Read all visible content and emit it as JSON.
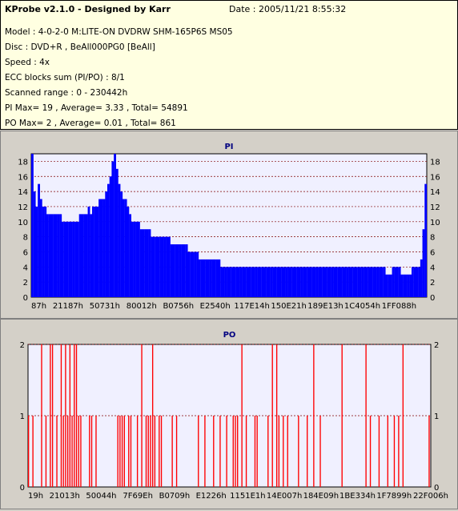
{
  "info": {
    "title": "KProbe v2.1.0 - Designed by Karr",
    "date": "Date : 2005/11/21 8:55:32",
    "lines": [
      "Model : 4-0-2-0 M:LITE-ON DVDRW SHM-165P6S MS05",
      "Disc : DVD+R , BeAll000PG0 [BeAll]",
      "Speed : 4x",
      "ECC blocks sum (PI/PO) : 8/1",
      "Scanned range : 0 - 230442h",
      "PI Max= 19 , Average= 3.33 , Total= 54891",
      "PO Max= 2 , Average= 0.01 , Total= 861"
    ]
  },
  "colors": {
    "pi": "#0000ff",
    "po": "#ff0000",
    "plot_bg": "#f0f0ff",
    "panel_bg": "#d4d0c8"
  },
  "chart_data": [
    {
      "type": "bar",
      "title": "PI",
      "ylim": [
        0,
        19
      ],
      "y_ticks": [
        0,
        2,
        4,
        6,
        8,
        10,
        12,
        14,
        16,
        18
      ],
      "x_tick_labels": [
        "87h",
        "21187h",
        "50731h",
        "80012h",
        "B0756h",
        "E2540h",
        "117E14h",
        "150E21h",
        "189E13h",
        "1C4054h",
        "1FF088h"
      ],
      "grid": true,
      "series": [
        {
          "values": [
            19,
            14,
            12,
            15,
            13,
            12,
            12,
            11,
            11,
            11,
            11,
            11,
            11,
            11,
            10,
            10,
            10,
            10,
            10,
            10,
            10,
            10,
            11,
            11,
            11,
            11,
            12,
            11,
            12,
            12,
            12,
            13,
            13,
            13,
            14,
            15,
            16,
            18,
            19,
            17,
            15,
            14,
            13,
            13,
            12,
            11,
            10,
            10,
            10,
            10,
            9,
            9,
            9,
            9,
            9,
            8,
            8,
            8,
            8,
            8,
            8,
            8,
            8,
            8,
            7,
            7,
            7,
            7,
            7,
            7,
            7,
            7,
            6,
            6,
            6,
            6,
            6,
            5,
            5,
            5,
            5,
            5,
            5,
            5,
            5,
            5,
            5,
            4,
            4,
            4,
            4,
            4,
            4,
            4,
            4,
            4,
            4,
            4,
            4,
            4,
            4,
            4,
            4,
            4,
            4,
            4,
            4,
            4,
            4,
            4,
            4,
            4,
            4,
            4,
            4,
            4,
            4,
            4,
            4,
            4,
            4,
            4,
            4,
            4,
            4,
            4,
            4,
            4,
            4,
            4,
            4,
            4,
            4,
            4,
            4,
            4,
            4,
            4,
            4,
            4,
            4,
            4,
            4,
            4,
            4,
            4,
            4,
            4,
            4,
            4,
            4,
            4,
            4,
            4,
            4,
            4,
            4,
            4,
            4,
            4,
            4,
            4,
            4,
            3,
            3,
            3,
            4,
            4,
            4,
            4,
            3,
            3,
            3,
            3,
            3,
            4,
            4,
            4,
            4,
            5,
            9,
            15
          ]
        }
      ]
    },
    {
      "type": "bar",
      "title": "PO",
      "ylim": [
        0,
        2
      ],
      "y_ticks": [
        0,
        1,
        2
      ],
      "x_tick_labels": [
        "19h",
        "21013h",
        "50044h",
        "7F69Eh",
        "B0709h",
        "E1226h",
        "1151E1h",
        "14E007h",
        "184E09h",
        "1BE334h",
        "1F7899h",
        "22F006h"
      ],
      "grid": true,
      "series": [
        {
          "values": [
            1,
            0,
            1,
            0,
            0,
            0,
            2,
            0,
            1,
            0,
            2,
            2,
            0,
            1,
            0,
            2,
            1,
            2,
            1,
            2,
            1,
            2,
            2,
            1,
            1,
            0,
            0,
            0,
            1,
            1,
            0,
            1,
            0,
            0,
            0,
            0,
            0,
            0,
            0,
            0,
            0,
            1,
            1,
            1,
            1,
            0,
            1,
            1,
            0,
            0,
            1,
            0,
            2,
            0,
            1,
            1,
            1,
            2,
            1,
            0,
            1,
            1,
            0,
            0,
            0,
            0,
            1,
            0,
            1,
            0,
            0,
            0,
            0,
            0,
            0,
            0,
            0,
            0,
            1,
            0,
            0,
            1,
            0,
            0,
            0,
            1,
            0,
            0,
            1,
            0,
            0,
            1,
            0,
            0,
            1,
            1,
            1,
            0,
            2,
            0,
            1,
            0,
            0,
            0,
            1,
            1,
            0,
            0,
            0,
            0,
            1,
            0,
            2,
            0,
            2,
            1,
            0,
            1,
            0,
            1,
            0,
            0,
            0,
            0,
            1,
            0,
            0,
            0,
            1,
            0,
            0,
            2,
            0,
            0,
            1,
            0,
            0,
            0,
            0,
            0,
            0,
            0,
            0,
            0,
            2,
            0,
            0,
            0,
            0,
            0,
            0,
            0,
            0,
            0,
            0,
            2,
            0,
            1,
            0,
            0,
            0,
            1,
            0,
            0,
            0,
            1,
            0,
            0,
            1,
            0,
            1,
            0,
            2,
            0,
            0,
            0,
            0,
            0,
            0,
            0,
            0,
            0,
            0,
            0,
            1
          ]
        }
      ]
    }
  ]
}
